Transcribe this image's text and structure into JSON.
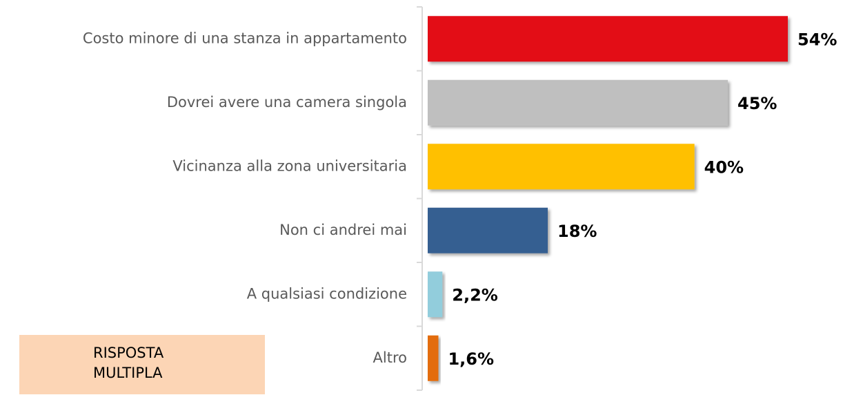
{
  "chart_data": {
    "type": "bar",
    "orientation": "horizontal",
    "categories": [
      "Costo minore di una stanza in appartamento",
      "Dovrei avere una camera singola",
      "Vicinanza alla zona universitaria",
      "Non ci andrei mai",
      "A qualsiasi condizione",
      "Altro"
    ],
    "values": [
      54,
      45,
      40,
      18,
      2.2,
      1.6
    ],
    "value_labels": [
      "54%",
      "45%",
      "40%",
      "18%",
      "2,2%",
      "1,6%"
    ],
    "colors": [
      "#e30b17",
      "#bfbfbf",
      "#ffc000",
      "#365f91",
      "#92cddc",
      "#e36c09"
    ],
    "annotation": "RISPOSTA MULTIPLA"
  }
}
